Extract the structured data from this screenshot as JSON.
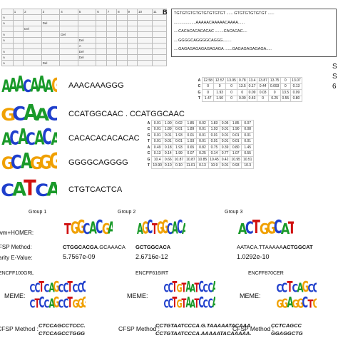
{
  "panel_a": {
    "header": [
      "1",
      "2",
      "3",
      "4",
      "5",
      "6",
      "7",
      "8",
      "9",
      "10",
      "11"
    ],
    "rows": [
      [
        "A",
        null,
        null,
        null,
        null,
        null,
        null,
        null,
        null,
        null,
        null,
        null
      ],
      [
        "A",
        null,
        null,
        "Del",
        null,
        null,
        null,
        null,
        null,
        null,
        null,
        null
      ],
      [
        null,
        null,
        "Del",
        null,
        null,
        null,
        null,
        null,
        null,
        null,
        null,
        null
      ],
      [
        "A",
        null,
        null,
        null,
        "Del",
        null,
        null,
        null,
        null,
        null,
        null,
        null
      ],
      [
        "A",
        null,
        null,
        null,
        null,
        "Del",
        null,
        null,
        null,
        null,
        null,
        null
      ],
      [
        null,
        null,
        null,
        null,
        null,
        "A",
        null,
        null,
        null,
        null,
        null,
        null
      ],
      [
        "A",
        null,
        null,
        null,
        null,
        "Del",
        null,
        null,
        null,
        null,
        null,
        null
      ],
      [
        "A",
        null,
        null,
        null,
        null,
        "Del",
        null,
        null,
        null,
        null,
        null,
        null
      ],
      [
        "A",
        null,
        null,
        "Del",
        null,
        null,
        null,
        null,
        null,
        null,
        null,
        null
      ]
    ]
  },
  "panel_b": {
    "label": "B",
    "lines": [
      "TGTGTGTGTGTGTGTGTGT ...... GTGTGTGTGTGT ......",
      "....................AAAAACAAAAACAAAA......",
      "....CACACACACACAC ........CACACAC....",
      "....GGGGCAGGGGCAGGG........",
      "....GAGAGAGAGAGAGAGA .......GAGAGAGAGAGA....."
    ]
  },
  "edge_letters": [
    "S",
    "S",
    "6"
  ],
  "motifs": [
    {
      "logo": [
        "A",
        "A",
        "A",
        "C",
        "A",
        "A",
        "A",
        "G"
      ],
      "sequence": "AAACAAAGGG"
    },
    {
      "logo": [
        "G",
        "C",
        "A",
        "A",
        "C"
      ],
      "sequence": "CCATGGCAAC . CCATGGCAAC"
    },
    {
      "logo": [
        "A",
        "C",
        "A",
        "C",
        "A",
        "C",
        "A"
      ],
      "sequence": "CACACACACACAC"
    },
    {
      "logo": [
        "G",
        "C",
        "A",
        "G",
        "G",
        "G"
      ],
      "sequence": "GGGGCAGGGG"
    },
    {
      "logo": [
        "C",
        "A",
        "T",
        "C",
        "A"
      ],
      "sequence": "CTGTCACTCA"
    }
  ],
  "matrix1": {
    "rows": [
      {
        "base": "A",
        "values": [
          "12.58",
          "12.57",
          "13.95",
          "0.78",
          "13.4",
          "13.87",
          "13.75",
          "0",
          "13.07"
        ]
      },
      {
        "base": "C",
        "values": [
          "0",
          "0",
          "0",
          "13.5",
          "0.17",
          "0.44",
          "0.093",
          "0",
          "0.13"
        ]
      },
      {
        "base": "G",
        "values": [
          "0",
          "1.93",
          "0",
          "0",
          "0.09",
          "0.03",
          "0",
          "13.5",
          "0.09"
        ]
      },
      {
        "base": "T",
        "values": [
          "1.47",
          "1.50",
          "0",
          "0.09",
          "0.43",
          "0",
          "0.25",
          "0.55",
          "0.80"
        ]
      }
    ]
  },
  "matrix2": {
    "rows": [
      {
        "base": "A",
        "values": [
          "0.01",
          "1.90",
          "0.02",
          "1.85",
          "0.02",
          "1.83",
          "0.05",
          "1.85",
          "0.07"
        ]
      },
      {
        "base": "C",
        "values": [
          "0.01",
          "1.89",
          "0.01",
          "1.89",
          "0.01",
          "1.93",
          "0.01",
          "1.90",
          "0.08"
        ]
      },
      {
        "base": "G",
        "values": [
          "0.01",
          "0.01",
          "1.93",
          "0.01",
          "0.01",
          "0.01",
          "0.01",
          "0.01",
          "0.01"
        ]
      },
      {
        "base": "T",
        "values": [
          "0.01",
          "0.01",
          "0.01",
          "1.93",
          "0.01",
          "0.01",
          "0.01",
          "0.01",
          "0.01"
        ]
      },
      {
        "base": "A",
        "values": [
          "0.49",
          "0.18",
          "1.93",
          "0.65",
          "0.82",
          "0.75",
          "0.39",
          "0.80",
          "1.45"
        ]
      },
      {
        "base": "C",
        "values": [
          "0.13",
          "0.14",
          "1.99",
          "0.07",
          "0.25",
          "0.14",
          "0.77",
          "1.07",
          "0.55"
        ]
      },
      {
        "base": "G",
        "values": [
          "10.4",
          "0.66",
          "10.87",
          "10.87",
          "10.85",
          "10.45",
          "0.42",
          "10.95",
          "10.51"
        ]
      },
      {
        "base": "T",
        "values": [
          "10.90",
          "0.10",
          "0.10",
          "11.01",
          "0.13",
          "10.9",
          "0.01",
          "0.93",
          "10.3"
        ]
      }
    ]
  },
  "groups": {
    "row_labels": [
      "wm+HOMER:",
      "FSP Method:",
      "arity E-Value:"
    ],
    "items": [
      {
        "name": "Group 1",
        "logo": [
          "T",
          "G",
          "G",
          "C",
          "A",
          "C",
          "G",
          "A"
        ],
        "cfsp_bold": "CTGGCACGA",
        "cfsp_rest": ".GCAAACA",
        "evalue": "5.7567e-09"
      },
      {
        "name": "Group 2",
        "logo": [
          "A",
          "G",
          "C",
          "T",
          "G",
          "G",
          "C",
          "A",
          "C",
          "A"
        ],
        "cfsp_bold": "GCTGGCACA",
        "cfsp_rest": "",
        "evalue": "2.6716e-12"
      },
      {
        "name": "Group 3",
        "logo": [
          "A",
          "C",
          "T",
          "G",
          "G",
          "C",
          "A",
          "T"
        ],
        "cfsp_bold": "ACTGGCAT",
        "cfsp_rest": "AATACA.TTAAAAA",
        "evalue": "1.0292e-10"
      }
    ]
  },
  "encode": {
    "items": [
      {
        "name": "ENCFF100GRL",
        "meme": "MEME:",
        "logo_rows": [
          [
            "C",
            "C",
            "T",
            "C",
            "A",
            "G",
            "C",
            "C",
            "T",
            "C",
            "C",
            "C"
          ],
          [
            "C",
            "T",
            "C",
            "C",
            "A",
            "G",
            "C",
            "C",
            "T",
            "G",
            "G",
            "G"
          ]
        ],
        "method": "CFSP Method :",
        "cfsp": [
          "CTCCAGCCTCCC.",
          "CTCCAGCCTGGG"
        ]
      },
      {
        "name": "ENCFF616IRT",
        "meme": "MEME:",
        "logo_rows": [
          [
            "C",
            "C",
            "T",
            "G",
            "T",
            "A",
            "A",
            "T",
            "C",
            "C",
            "C",
            "A"
          ],
          [
            "C",
            "C",
            "T",
            "G",
            "T",
            "A",
            "A",
            "T",
            "C",
            "C",
            "C",
            "A"
          ]
        ],
        "method": "CFSP Method :",
        "cfsp": [
          "CCTGTAATCCCA.G.TAAAAATACAAA.",
          "CCTGTAATCCCA.AAAAATACAAAAA."
        ]
      },
      {
        "name": "ENCFF870CER",
        "meme": "MEME:",
        "logo_rows": [
          [
            "C",
            "C",
            "T",
            "C",
            "A",
            "G",
            "C",
            "C"
          ],
          [
            "G",
            "G",
            "A",
            "G",
            "G",
            "C",
            "T",
            "G"
          ]
        ],
        "method": "CFSP Method :",
        "cfsp": [
          "CCTCAGCC",
          "GGAGGCTG"
        ]
      }
    ]
  }
}
